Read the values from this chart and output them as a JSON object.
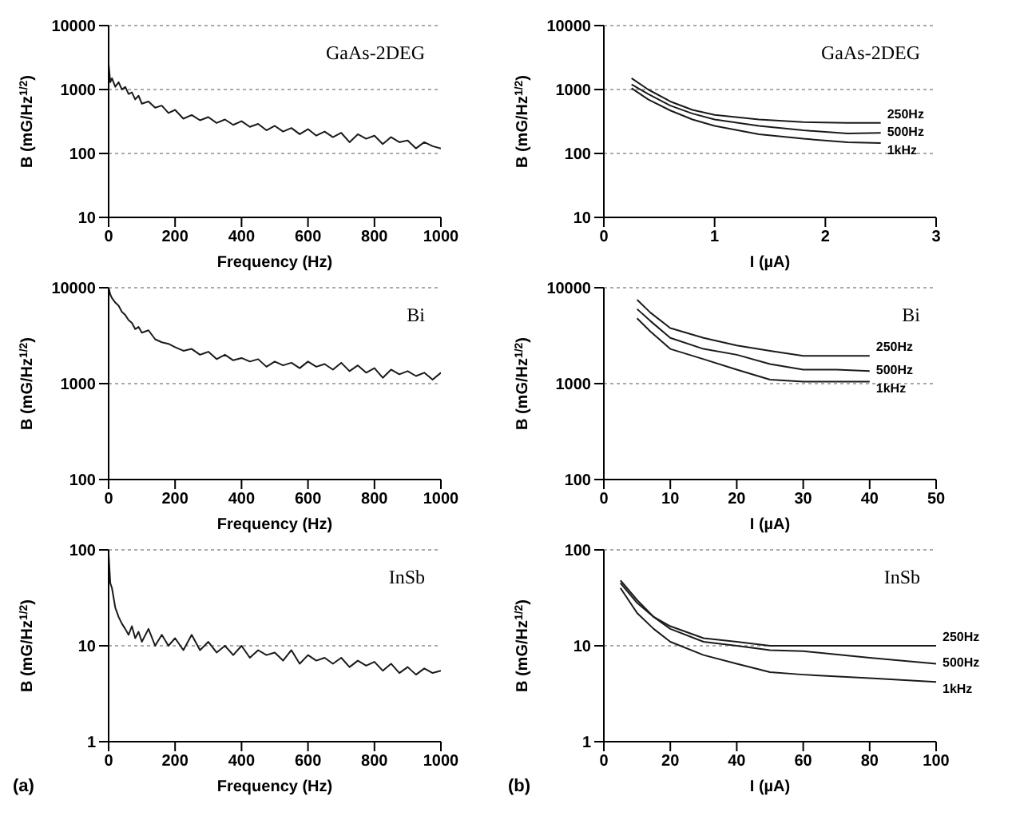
{
  "chart_data": [
    {
      "type": "line",
      "xlabel": "Frequency (Hz)",
      "ylabel": "B (mG/Hz$^{1/2}$)",
      "log": "y",
      "grid": "y",
      "marker": "none",
      "xlim": [
        0,
        1000
      ],
      "xticks": [
        0,
        200,
        400,
        600,
        800,
        1000
      ],
      "ylim": [
        10,
        10000
      ],
      "yticks": [
        10,
        100,
        1000,
        10000
      ],
      "annotations": [
        "GaAs-2DEG"
      ],
      "x": [
        0,
        5,
        10,
        20,
        30,
        40,
        50,
        60,
        70,
        80,
        90,
        100,
        120,
        140,
        160,
        180,
        200,
        225,
        250,
        275,
        300,
        325,
        350,
        375,
        400,
        425,
        450,
        475,
        500,
        525,
        550,
        575,
        600,
        625,
        650,
        675,
        700,
        725,
        750,
        775,
        800,
        825,
        850,
        875,
        900,
        925,
        950,
        975,
        1000
      ],
      "series": [
        {
          "color": "#1a1a1a",
          "values": [
            2500,
            1300,
            1500,
            1100,
            1300,
            1000,
            1100,
            850,
            900,
            700,
            800,
            600,
            650,
            520,
            560,
            430,
            480,
            350,
            400,
            330,
            370,
            300,
            340,
            280,
            320,
            260,
            290,
            230,
            270,
            220,
            250,
            200,
            240,
            190,
            220,
            180,
            210,
            150,
            200,
            170,
            190,
            140,
            180,
            150,
            160,
            120,
            150,
            130,
            120
          ]
        }
      ]
    },
    {
      "type": "line",
      "xlabel": "I (µA)",
      "ylabel": "B (mG/Hz$^{1/2}$)",
      "log": "y",
      "grid": "y",
      "marker": "none",
      "xlim": [
        0,
        3
      ],
      "xticks": [
        0,
        1,
        2,
        3
      ],
      "ylim": [
        10,
        10000
      ],
      "yticks": [
        10,
        100,
        1000,
        10000
      ],
      "annotations": [
        "GaAs-2DEG"
      ],
      "x": [
        0.25,
        0.4,
        0.6,
        0.8,
        1.0,
        1.4,
        1.8,
        2.2,
        2.5
      ],
      "series": [
        {
          "name": "250Hz",
          "color": "#1a1a1a",
          "values": [
            1500,
            1000,
            650,
            480,
            400,
            340,
            310,
            300,
            300
          ]
        },
        {
          "name": "500Hz",
          "color": "#1a1a1a",
          "values": [
            1200,
            850,
            560,
            420,
            340,
            270,
            230,
            205,
            210
          ]
        },
        {
          "name": "1kHz",
          "color": "#1a1a1a",
          "values": [
            1050,
            700,
            470,
            340,
            270,
            200,
            170,
            150,
            145
          ]
        }
      ]
    },
    {
      "type": "line",
      "xlabel": "Frequency (Hz)",
      "ylabel": "B (mG/Hz$^{1/2}$)",
      "log": "y",
      "grid": "y",
      "marker": "none",
      "xlim": [
        0,
        1000
      ],
      "xticks": [
        0,
        200,
        400,
        600,
        800,
        1000
      ],
      "ylim": [
        100,
        10000
      ],
      "yticks": [
        100,
        1000,
        10000
      ],
      "annotations": [
        "Bi"
      ],
      "x": [
        0,
        5,
        10,
        20,
        30,
        40,
        50,
        60,
        70,
        80,
        90,
        100,
        120,
        140,
        160,
        180,
        200,
        225,
        250,
        275,
        300,
        325,
        350,
        375,
        400,
        425,
        450,
        475,
        500,
        525,
        550,
        575,
        600,
        625,
        650,
        675,
        700,
        725,
        750,
        775,
        800,
        825,
        850,
        875,
        900,
        925,
        950,
        975,
        1000
      ],
      "series": [
        {
          "color": "#1a1a1a",
          "values": [
            10000,
            8500,
            7800,
            7000,
            6500,
            5600,
            5200,
            4600,
            4300,
            3700,
            3900,
            3400,
            3600,
            2900,
            2700,
            2600,
            2400,
            2200,
            2300,
            2000,
            2150,
            1800,
            2000,
            1750,
            1850,
            1700,
            1800,
            1500,
            1700,
            1550,
            1650,
            1450,
            1700,
            1500,
            1600,
            1400,
            1650,
            1350,
            1550,
            1300,
            1450,
            1150,
            1400,
            1250,
            1350,
            1200,
            1300,
            1100,
            1300
          ]
        }
      ]
    },
    {
      "type": "line",
      "xlabel": "I (µA)",
      "ylabel": "B (mG/Hz$^{1/2}$)",
      "log": "y",
      "grid": "y",
      "marker": "none",
      "xlim": [
        0,
        50
      ],
      "xticks": [
        0,
        10,
        20,
        30,
        40,
        50
      ],
      "ylim": [
        100,
        10000
      ],
      "yticks": [
        100,
        1000,
        10000
      ],
      "annotations": [
        "Bi"
      ],
      "x": [
        5,
        7,
        10,
        15,
        20,
        25,
        30,
        35,
        40
      ],
      "series": [
        {
          "name": "250Hz",
          "color": "#1a1a1a",
          "values": [
            7500,
            5500,
            3800,
            3000,
            2500,
            2200,
            1950,
            1950,
            1950
          ]
        },
        {
          "name": "500Hz",
          "color": "#1a1a1a",
          "values": [
            6000,
            4500,
            3000,
            2300,
            2000,
            1600,
            1400,
            1400,
            1350
          ]
        },
        {
          "name": "1kHz",
          "color": "#1a1a1a",
          "values": [
            4800,
            3500,
            2300,
            1800,
            1400,
            1100,
            1050,
            1050,
            1050
          ]
        }
      ]
    },
    {
      "type": "line",
      "xlabel": "Frequency (Hz)",
      "ylabel": "B (mG/Hz$^{1/2}$)",
      "log": "y",
      "grid": "y",
      "marker": "none",
      "xlim": [
        0,
        1000
      ],
      "xticks": [
        0,
        200,
        400,
        600,
        800,
        1000
      ],
      "ylim": [
        1,
        100
      ],
      "yticks": [
        1,
        10,
        100
      ],
      "annotations": [
        "InSb",
        "(a)"
      ],
      "x": [
        0,
        5,
        10,
        20,
        30,
        40,
        50,
        60,
        70,
        80,
        90,
        100,
        120,
        140,
        160,
        180,
        200,
        225,
        250,
        275,
        300,
        325,
        350,
        375,
        400,
        425,
        450,
        475,
        500,
        525,
        550,
        575,
        600,
        625,
        650,
        675,
        700,
        725,
        750,
        775,
        800,
        825,
        850,
        875,
        900,
        925,
        950,
        975,
        1000
      ],
      "series": [
        {
          "color": "#1a1a1a",
          "values": [
            90,
            45,
            40,
            25,
            20,
            17,
            15,
            13,
            16,
            12,
            14,
            11,
            15,
            10,
            13,
            10,
            12,
            9,
            13,
            9,
            11,
            8.5,
            10,
            8,
            10,
            7.5,
            9,
            8,
            8.5,
            7,
            9,
            6.5,
            8,
            7,
            7.5,
            6.5,
            7.5,
            6,
            7,
            6.2,
            6.8,
            5.5,
            6.5,
            5.2,
            6,
            5,
            5.8,
            5.2,
            5.5
          ]
        }
      ]
    },
    {
      "type": "line",
      "xlabel": "I (µA)",
      "ylabel": "B (mG/Hz$^{1/2}$)",
      "log": "y",
      "grid": "y",
      "marker": "none",
      "xlim": [
        0,
        100
      ],
      "xticks": [
        0,
        20,
        40,
        60,
        80,
        100
      ],
      "ylim": [
        1,
        100
      ],
      "yticks": [
        1,
        10,
        100
      ],
      "annotations": [
        "InSb",
        "(b)"
      ],
      "x": [
        5,
        10,
        15,
        20,
        30,
        40,
        50,
        60,
        80,
        100
      ],
      "series": [
        {
          "name": "250Hz",
          "color": "#1a1a1a",
          "values": [
            45,
            28,
            20,
            16,
            12,
            11,
            10,
            10,
            10,
            10
          ]
        },
        {
          "name": "500Hz",
          "color": "#1a1a1a",
          "values": [
            48,
            30,
            20,
            15,
            11,
            10,
            9,
            8.8,
            7.5,
            6.5
          ]
        },
        {
          "name": "1kHz",
          "color": "#1a1a1a",
          "values": [
            40,
            22,
            15,
            11,
            8,
            6.5,
            5.3,
            5,
            4.6,
            4.2
          ]
        }
      ]
    }
  ]
}
